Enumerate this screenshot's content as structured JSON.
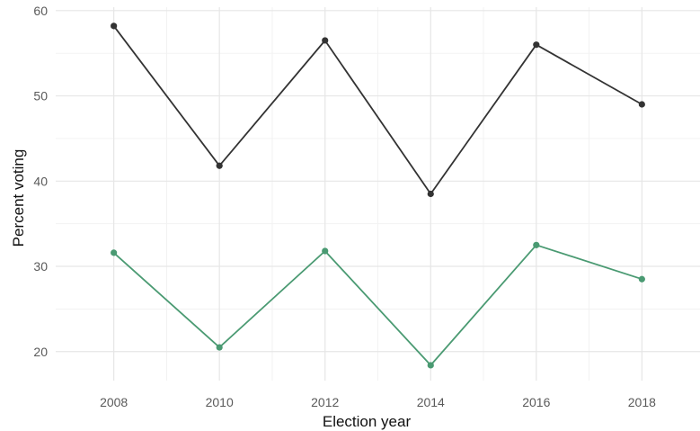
{
  "chart_data": {
    "type": "line",
    "title": "",
    "xlabel": "Election year",
    "ylabel": "Percent voting",
    "x": [
      2008,
      2010,
      2012,
      2014,
      2016,
      2018
    ],
    "x_ticks": [
      "2008",
      "2010",
      "2012",
      "2014",
      "2016",
      "2018"
    ],
    "y_ticks": [
      "20",
      "30",
      "40",
      "50",
      "60"
    ],
    "xlim": [
      2006.9,
      2019.1
    ],
    "ylim": [
      16.6,
      60.4
    ],
    "grid": true,
    "legend": "none",
    "series": [
      {
        "color": "#333333",
        "values": [
          58.2,
          41.8,
          56.5,
          38.5,
          56.0,
          49.0
        ]
      },
      {
        "color": "#4a9a72",
        "values": [
          31.6,
          20.5,
          31.8,
          18.4,
          32.5,
          28.5
        ]
      }
    ]
  }
}
